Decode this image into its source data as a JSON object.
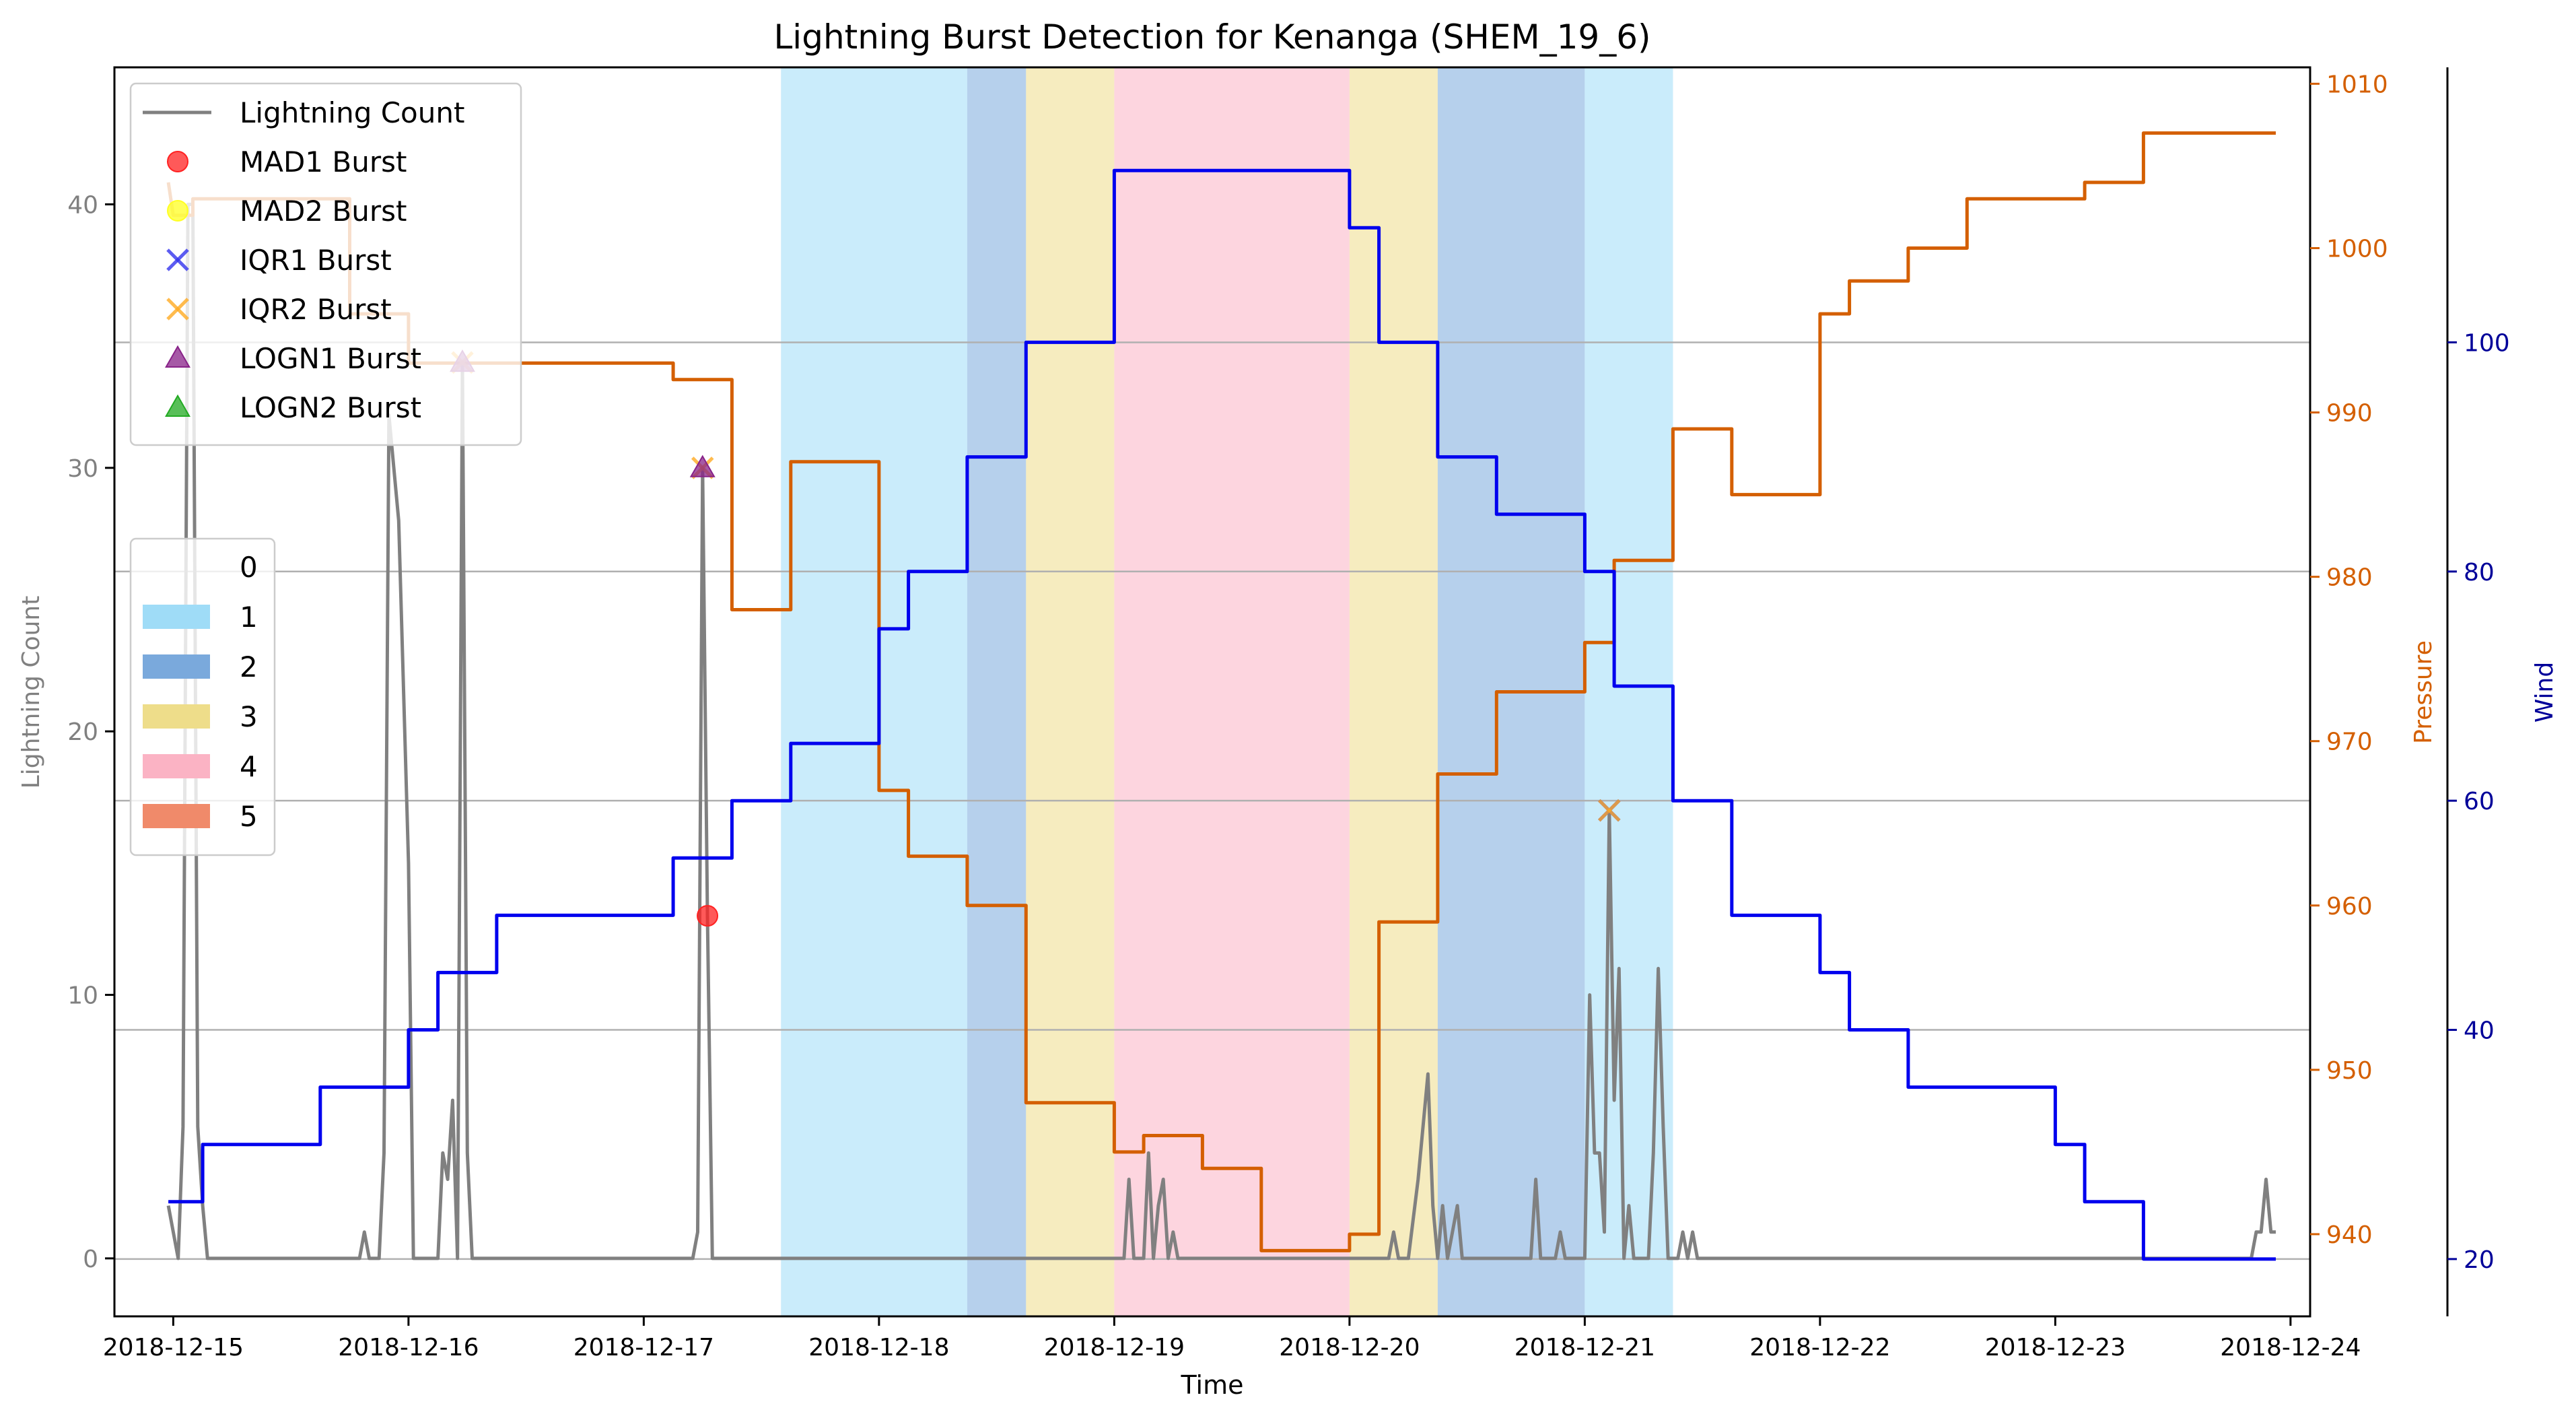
{
  "chart_data": {
    "type": "line",
    "title": "Lightning Burst Detection for Kenanga (SHEM_19_6)",
    "xlabel": "Time",
    "ylabel_left": "Lightning Count",
    "ylabel_pressure": "Pressure",
    "ylabel_wind": "Wind",
    "x_type": "date",
    "xlim": [
      "2018-12-14 18:00",
      "2018-12-24 02:00"
    ],
    "ylim_count": [
      -2.2,
      45.2
    ],
    "ylim_pressure": [
      935,
      1011
    ],
    "ylim_wind": [
      15,
      124
    ],
    "x_ticks": [
      "2018-12-15",
      "2018-12-16",
      "2018-12-17",
      "2018-12-18",
      "2018-12-19",
      "2018-12-20",
      "2018-12-21",
      "2018-12-22",
      "2018-12-23",
      "2018-12-24"
    ],
    "y_ticks_count": [
      0,
      10,
      20,
      30,
      40
    ],
    "y_ticks_pressure": [
      940,
      950,
      960,
      970,
      980,
      990,
      1000,
      1010
    ],
    "y_ticks_wind": [
      20,
      40,
      60,
      80,
      100
    ],
    "grid": "horizontal",
    "colors": {
      "lightning": "#808080",
      "pressure": "#d45f00",
      "wind": "#0000ee",
      "pressure_axis": "#d45f00",
      "wind_axis": "#000099",
      "cat1": "#9fdcf7",
      "cat2": "#7aa9dc",
      "cat3": "#eedd8a",
      "cat4": "#fbb3c4",
      "cat5": "#f08a6a"
    },
    "category_bands": [
      {
        "start": "2018-12-17 14:00",
        "end": "2018-12-18 09:00",
        "category": 1
      },
      {
        "start": "2018-12-18 09:00",
        "end": "2018-12-18 15:00",
        "category": 2
      },
      {
        "start": "2018-12-18 15:00",
        "end": "2018-12-19 00:00",
        "category": 3
      },
      {
        "start": "2018-12-19 00:00",
        "end": "2018-12-20 00:00",
        "category": 4
      },
      {
        "start": "2018-12-20 00:00",
        "end": "2018-12-20 09:00",
        "category": 3
      },
      {
        "start": "2018-12-20 09:00",
        "end": "2018-12-21 00:00",
        "category": 2
      },
      {
        "start": "2018-12-21 00:00",
        "end": "2018-12-21 09:00",
        "category": 1
      }
    ],
    "series": [
      {
        "name": "Lightning Count",
        "axis": "count",
        "points": [
          [
            "2018-12-14 23:30",
            2
          ],
          [
            "2018-12-15 00:30",
            0
          ],
          [
            "2018-12-15 01:00",
            5
          ],
          [
            "2018-12-15 01:30",
            40
          ],
          [
            "2018-12-15 02:00",
            40
          ],
          [
            "2018-12-15 02:30",
            5
          ],
          [
            "2018-12-15 03:00",
            2
          ],
          [
            "2018-12-15 03:30",
            0
          ],
          [
            "2018-12-15 19:00",
            0
          ],
          [
            "2018-12-15 19:30",
            1
          ],
          [
            "2018-12-15 20:00",
            0
          ],
          [
            "2018-12-15 21:00",
            0
          ],
          [
            "2018-12-15 21:30",
            4
          ],
          [
            "2018-12-15 22:00",
            32
          ],
          [
            "2018-12-15 23:00",
            28
          ],
          [
            "2018-12-16 00:00",
            15
          ],
          [
            "2018-12-16 00:30",
            0
          ],
          [
            "2018-12-16 03:00",
            0
          ],
          [
            "2018-12-16 03:30",
            4
          ],
          [
            "2018-12-16 04:00",
            3
          ],
          [
            "2018-12-16 04:30",
            6
          ],
          [
            "2018-12-16 05:00",
            0
          ],
          [
            "2018-12-16 05:30",
            34
          ],
          [
            "2018-12-16 06:00",
            4
          ],
          [
            "2018-12-16 06:30",
            0
          ],
          [
            "2018-12-17 05:00",
            0
          ],
          [
            "2018-12-17 05:30",
            1
          ],
          [
            "2018-12-17 06:00",
            30
          ],
          [
            "2018-12-17 06:30",
            13
          ],
          [
            "2018-12-17 07:00",
            0
          ],
          [
            "2018-12-19 01:00",
            0
          ],
          [
            "2018-12-19 01:30",
            3
          ],
          [
            "2018-12-19 02:00",
            0
          ],
          [
            "2018-12-19 03:00",
            0
          ],
          [
            "2018-12-19 03:30",
            4
          ],
          [
            "2018-12-19 04:00",
            0
          ],
          [
            "2018-12-19 04:30",
            2
          ],
          [
            "2018-12-19 05:00",
            3
          ],
          [
            "2018-12-19 05:30",
            0
          ],
          [
            "2018-12-19 06:00",
            1
          ],
          [
            "2018-12-19 06:30",
            0
          ],
          [
            "2018-12-20 04:00",
            0
          ],
          [
            "2018-12-20 04:30",
            1
          ],
          [
            "2018-12-20 05:00",
            0
          ],
          [
            "2018-12-20 06:00",
            0
          ],
          [
            "2018-12-20 07:00",
            3
          ],
          [
            "2018-12-20 08:00",
            7
          ],
          [
            "2018-12-20 08:30",
            2
          ],
          [
            "2018-12-20 09:00",
            0
          ],
          [
            "2018-12-20 09:30",
            2
          ],
          [
            "2018-12-20 10:00",
            0
          ],
          [
            "2018-12-20 10:30",
            1
          ],
          [
            "2018-12-20 11:00",
            2
          ],
          [
            "2018-12-20 11:30",
            0
          ],
          [
            "2018-12-20 18:30",
            0
          ],
          [
            "2018-12-20 19:00",
            3
          ],
          [
            "2018-12-20 19:30",
            0
          ],
          [
            "2018-12-20 21:00",
            0
          ],
          [
            "2018-12-20 21:30",
            1
          ],
          [
            "2018-12-20 22:00",
            0
          ],
          [
            "2018-12-21 00:00",
            0
          ],
          [
            "2018-12-21 00:30",
            10
          ],
          [
            "2018-12-21 01:00",
            4
          ],
          [
            "2018-12-21 01:30",
            4
          ],
          [
            "2018-12-21 02:00",
            1
          ],
          [
            "2018-12-21 02:30",
            17
          ],
          [
            "2018-12-21 03:00",
            6
          ],
          [
            "2018-12-21 03:30",
            11
          ],
          [
            "2018-12-21 04:00",
            0
          ],
          [
            "2018-12-21 04:30",
            2
          ],
          [
            "2018-12-21 05:00",
            0
          ],
          [
            "2018-12-21 06:30",
            0
          ],
          [
            "2018-12-21 07:00",
            4
          ],
          [
            "2018-12-21 07:30",
            11
          ],
          [
            "2018-12-21 08:00",
            5
          ],
          [
            "2018-12-21 08:30",
            0
          ],
          [
            "2018-12-21 09:30",
            0
          ],
          [
            "2018-12-21 10:00",
            1
          ],
          [
            "2018-12-21 10:30",
            0
          ],
          [
            "2018-12-21 11:00",
            1
          ],
          [
            "2018-12-21 11:30",
            0
          ],
          [
            "2018-12-23 20:00",
            0
          ],
          [
            "2018-12-23 20:30",
            1
          ],
          [
            "2018-12-23 21:00",
            1
          ],
          [
            "2018-12-23 21:30",
            3
          ],
          [
            "2018-12-23 22:00",
            1
          ],
          [
            "2018-12-23 22:30",
            1
          ]
        ]
      },
      {
        "name": "Pressure",
        "axis": "pressure",
        "points": [
          [
            "2018-12-14 23:30",
            1004
          ],
          [
            "2018-12-15 00:00",
            1002
          ],
          [
            "2018-12-15 02:00",
            1002
          ],
          [
            "2018-12-15 02:00",
            1003
          ],
          [
            "2018-12-15 18:00",
            1003
          ],
          [
            "2018-12-15 18:00",
            996
          ],
          [
            "2018-12-16 00:00",
            996
          ],
          [
            "2018-12-16 00:00",
            993
          ],
          [
            "2018-12-17 03:00",
            993
          ],
          [
            "2018-12-17 03:00",
            992
          ],
          [
            "2018-12-17 09:00",
            992
          ],
          [
            "2018-12-17 09:00",
            978
          ],
          [
            "2018-12-17 15:00",
            978
          ],
          [
            "2018-12-17 15:00",
            987
          ],
          [
            "2018-12-18 00:00",
            987
          ],
          [
            "2018-12-18 00:00",
            967
          ],
          [
            "2018-12-18 03:00",
            967
          ],
          [
            "2018-12-18 03:00",
            963
          ],
          [
            "2018-12-18 09:00",
            963
          ],
          [
            "2018-12-18 09:00",
            960
          ],
          [
            "2018-12-18 15:00",
            960
          ],
          [
            "2018-12-18 15:00",
            948
          ],
          [
            "2018-12-19 00:00",
            948
          ],
          [
            "2018-12-19 00:00",
            945
          ],
          [
            "2018-12-19 03:00",
            945
          ],
          [
            "2018-12-19 03:00",
            946
          ],
          [
            "2018-12-19 09:00",
            946
          ],
          [
            "2018-12-19 09:00",
            944
          ],
          [
            "2018-12-19 15:00",
            944
          ],
          [
            "2018-12-19 15:00",
            939
          ],
          [
            "2018-12-20 00:00",
            939
          ],
          [
            "2018-12-20 00:00",
            940
          ],
          [
            "2018-12-20 03:00",
            940
          ],
          [
            "2018-12-20 03:00",
            959
          ],
          [
            "2018-12-20 09:00",
            959
          ],
          [
            "2018-12-20 09:00",
            968
          ],
          [
            "2018-12-20 15:00",
            968
          ],
          [
            "2018-12-20 15:00",
            973
          ],
          [
            "2018-12-21 00:00",
            973
          ],
          [
            "2018-12-21 00:00",
            976
          ],
          [
            "2018-12-21 03:00",
            976
          ],
          [
            "2018-12-21 03:00",
            981
          ],
          [
            "2018-12-21 09:00",
            981
          ],
          [
            "2018-12-21 09:00",
            989
          ],
          [
            "2018-12-21 15:00",
            989
          ],
          [
            "2018-12-21 15:00",
            985
          ],
          [
            "2018-12-22 00:00",
            985
          ],
          [
            "2018-12-22 00:00",
            996
          ],
          [
            "2018-12-22 03:00",
            996
          ],
          [
            "2018-12-22 03:00",
            998
          ],
          [
            "2018-12-22 09:00",
            998
          ],
          [
            "2018-12-22 09:00",
            1000
          ],
          [
            "2018-12-22 15:00",
            1000
          ],
          [
            "2018-12-22 15:00",
            1003
          ],
          [
            "2018-12-23 03:00",
            1003
          ],
          [
            "2018-12-23 03:00",
            1004
          ],
          [
            "2018-12-23 09:00",
            1004
          ],
          [
            "2018-12-23 09:00",
            1007
          ],
          [
            "2018-12-23 22:30",
            1007
          ]
        ]
      },
      {
        "name": "Wind",
        "axis": "wind",
        "points": [
          [
            "2018-12-14 23:30",
            25
          ],
          [
            "2018-12-15 03:00",
            25
          ],
          [
            "2018-12-15 03:00",
            30
          ],
          [
            "2018-12-15 15:00",
            30
          ],
          [
            "2018-12-15 15:00",
            35
          ],
          [
            "2018-12-16 00:00",
            35
          ],
          [
            "2018-12-16 00:00",
            40
          ],
          [
            "2018-12-16 03:00",
            40
          ],
          [
            "2018-12-16 03:00",
            45
          ],
          [
            "2018-12-16 09:00",
            45
          ],
          [
            "2018-12-16 09:00",
            50
          ],
          [
            "2018-12-17 03:00",
            50
          ],
          [
            "2018-12-17 03:00",
            55
          ],
          [
            "2018-12-17 09:00",
            55
          ],
          [
            "2018-12-17 09:00",
            60
          ],
          [
            "2018-12-17 15:00",
            60
          ],
          [
            "2018-12-17 15:00",
            65
          ],
          [
            "2018-12-18 00:00",
            65
          ],
          [
            "2018-12-18 00:00",
            75
          ],
          [
            "2018-12-18 03:00",
            75
          ],
          [
            "2018-12-18 03:00",
            80
          ],
          [
            "2018-12-18 09:00",
            80
          ],
          [
            "2018-12-18 09:00",
            90
          ],
          [
            "2018-12-18 15:00",
            90
          ],
          [
            "2018-12-18 15:00",
            100
          ],
          [
            "2018-12-19 00:00",
            100
          ],
          [
            "2018-12-19 00:00",
            115
          ],
          [
            "2018-12-20 00:00",
            115
          ],
          [
            "2018-12-20 00:00",
            110
          ],
          [
            "2018-12-20 03:00",
            110
          ],
          [
            "2018-12-20 03:00",
            100
          ],
          [
            "2018-12-20 09:00",
            100
          ],
          [
            "2018-12-20 09:00",
            90
          ],
          [
            "2018-12-20 15:00",
            90
          ],
          [
            "2018-12-20 15:00",
            85
          ],
          [
            "2018-12-21 00:00",
            85
          ],
          [
            "2018-12-21 00:00",
            80
          ],
          [
            "2018-12-21 03:00",
            80
          ],
          [
            "2018-12-21 03:00",
            70
          ],
          [
            "2018-12-21 09:00",
            70
          ],
          [
            "2018-12-21 09:00",
            60
          ],
          [
            "2018-12-21 15:00",
            60
          ],
          [
            "2018-12-21 15:00",
            50
          ],
          [
            "2018-12-22 00:00",
            50
          ],
          [
            "2018-12-22 00:00",
            45
          ],
          [
            "2018-12-22 03:00",
            45
          ],
          [
            "2018-12-22 03:00",
            40
          ],
          [
            "2018-12-22 09:00",
            40
          ],
          [
            "2018-12-22 09:00",
            35
          ],
          [
            "2018-12-23 00:00",
            35
          ],
          [
            "2018-12-23 00:00",
            30
          ],
          [
            "2018-12-23 03:00",
            30
          ],
          [
            "2018-12-23 03:00",
            25
          ],
          [
            "2018-12-23 09:00",
            25
          ],
          [
            "2018-12-23 09:00",
            20
          ],
          [
            "2018-12-23 22:30",
            20
          ]
        ]
      }
    ],
    "bursts": [
      {
        "name": "MAD1 Burst",
        "marker": "circle",
        "color": "#ff2222",
        "points": [
          [
            "2018-12-17 06:30",
            13
          ]
        ]
      },
      {
        "name": "MAD2 Burst",
        "marker": "circle",
        "color": "#ffff22",
        "points": []
      },
      {
        "name": "IQR1 Burst",
        "marker": "x",
        "color": "#3333ee",
        "points": [
          [
            "2018-12-21 02:30",
            17
          ]
        ]
      },
      {
        "name": "IQR2 Burst",
        "marker": "x",
        "color": "#ffaa22",
        "points": [
          [
            "2018-12-17 06:00",
            30
          ],
          [
            "2018-12-16 05:30",
            34
          ],
          [
            "2018-12-21 02:30",
            17
          ]
        ]
      },
      {
        "name": "LOGN1 Burst",
        "marker": "triangle",
        "color": "#882288",
        "points": [
          [
            "2018-12-16 05:30",
            34
          ],
          [
            "2018-12-17 06:00",
            30
          ]
        ]
      },
      {
        "name": "LOGN2 Burst",
        "marker": "triangle",
        "color": "#22aa22",
        "points": []
      }
    ],
    "legend_series": {
      "placement": "upper-left",
      "entries": [
        {
          "label": "Lightning Count",
          "type": "line",
          "color": "#808080"
        },
        {
          "label": "MAD1 Burst",
          "type": "circle",
          "color": "#ff2222"
        },
        {
          "label": "MAD2 Burst",
          "type": "circle",
          "color": "#ffff22"
        },
        {
          "label": "IQR1 Burst",
          "type": "x",
          "color": "#3333ee"
        },
        {
          "label": "IQR2 Burst",
          "type": "x",
          "color": "#ffaa22"
        },
        {
          "label": "LOGN1 Burst",
          "type": "triangle",
          "color": "#882288"
        },
        {
          "label": "LOGN2 Burst",
          "type": "triangle",
          "color": "#22aa22"
        }
      ]
    },
    "legend_categories": {
      "placement": "center-left",
      "entries": [
        {
          "label": "0",
          "color": ""
        },
        {
          "label": "1",
          "color": "#9fdcf7"
        },
        {
          "label": "2",
          "color": "#7aa9dc"
        },
        {
          "label": "3",
          "color": "#eedd8a"
        },
        {
          "label": "4",
          "color": "#fbb3c4"
        },
        {
          "label": "5",
          "color": "#f08a6a"
        }
      ]
    }
  }
}
